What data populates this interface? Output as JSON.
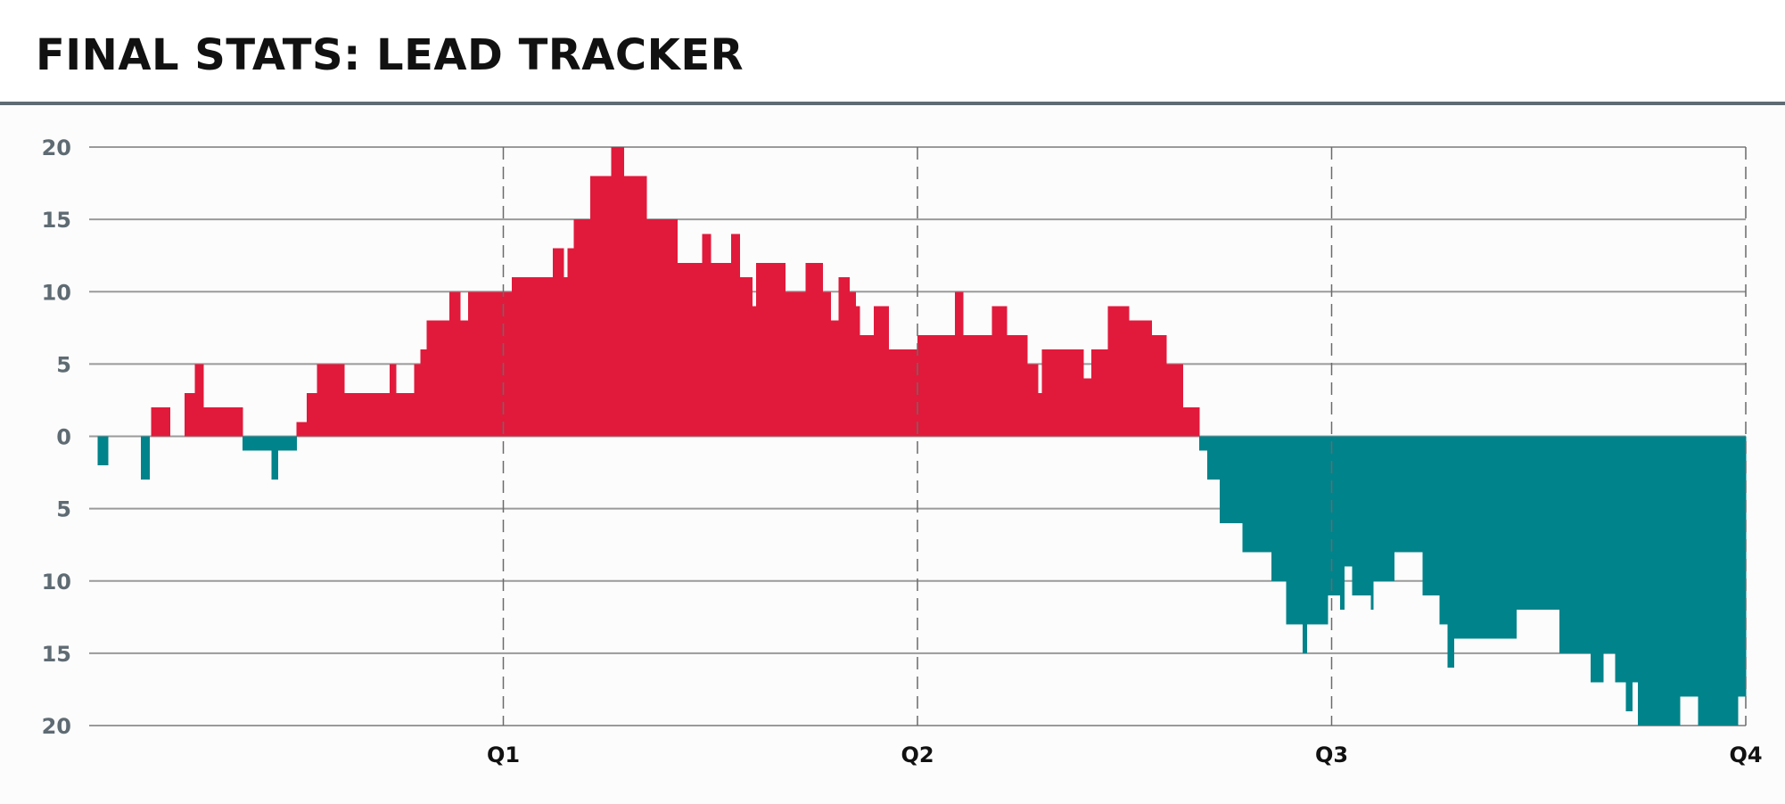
{
  "header": {
    "title": "FINAL STATS: LEAD TRACKER"
  },
  "colors": {
    "positive": "#e11a3b",
    "negative": "#00838a",
    "grid": "#9a9a9a",
    "header_rule": "#5f6b73"
  },
  "chart_data": {
    "type": "bar",
    "title": "FINAL STATS: LEAD TRACKER",
    "xlabel": "",
    "ylabel": "",
    "xlim": [
      0,
      4
    ],
    "ylim": [
      -20,
      20
    ],
    "y_ticks": [
      20,
      15,
      10,
      5,
      0,
      -5,
      -10,
      -15,
      -20
    ],
    "y_tick_labels": [
      "20",
      "15",
      "10",
      "5",
      "0",
      "5",
      "10",
      "15",
      "20"
    ],
    "x_ticks": [
      1,
      2,
      3,
      4
    ],
    "x_tick_labels": [
      "Q1",
      "Q2",
      "Q3",
      "Q4"
    ],
    "grid": true,
    "legend": "none",
    "lead_steps": [
      [
        0.0,
        0
      ],
      [
        0.02,
        -2
      ],
      [
        0.045,
        0
      ],
      [
        0.125,
        -3
      ],
      [
        0.145,
        0
      ],
      [
        0.15,
        2
      ],
      [
        0.195,
        0
      ],
      [
        0.23,
        3
      ],
      [
        0.255,
        5
      ],
      [
        0.275,
        2
      ],
      [
        0.37,
        -1
      ],
      [
        0.44,
        -3
      ],
      [
        0.455,
        -1
      ],
      [
        0.5,
        1
      ],
      [
        0.525,
        3
      ],
      [
        0.55,
        5
      ],
      [
        0.615,
        3
      ],
      [
        0.725,
        5
      ],
      [
        0.74,
        3
      ],
      [
        0.785,
        5
      ],
      [
        0.8,
        6
      ],
      [
        0.815,
        8
      ],
      [
        0.87,
        10
      ],
      [
        0.895,
        8
      ],
      [
        0.915,
        10
      ],
      [
        1.02,
        11
      ],
      [
        1.12,
        13
      ],
      [
        1.145,
        11
      ],
      [
        1.155,
        13
      ],
      [
        1.17,
        15
      ],
      [
        1.21,
        18
      ],
      [
        1.26,
        20
      ],
      [
        1.29,
        18
      ],
      [
        1.345,
        15
      ],
      [
        1.42,
        12
      ],
      [
        1.48,
        14
      ],
      [
        1.5,
        12
      ],
      [
        1.55,
        14
      ],
      [
        1.57,
        11
      ],
      [
        1.6,
        9
      ],
      [
        1.61,
        12
      ],
      [
        1.68,
        10
      ],
      [
        1.73,
        12
      ],
      [
        1.77,
        10
      ],
      [
        1.79,
        8
      ],
      [
        1.81,
        11
      ],
      [
        1.835,
        10
      ],
      [
        1.85,
        9
      ],
      [
        1.86,
        7
      ],
      [
        1.895,
        9
      ],
      [
        1.93,
        6
      ],
      [
        2.0,
        7
      ],
      [
        2.09,
        10
      ],
      [
        2.11,
        7
      ],
      [
        2.18,
        9
      ],
      [
        2.215,
        7
      ],
      [
        2.265,
        5
      ],
      [
        2.29,
        3
      ],
      [
        2.3,
        6
      ],
      [
        2.4,
        4
      ],
      [
        2.42,
        6
      ],
      [
        2.46,
        9
      ],
      [
        2.51,
        8
      ],
      [
        2.565,
        7
      ],
      [
        2.6,
        5
      ],
      [
        2.64,
        2
      ],
      [
        2.68,
        -1
      ],
      [
        2.7,
        -3
      ],
      [
        2.73,
        -6
      ],
      [
        2.785,
        -8
      ],
      [
        2.855,
        -10
      ],
      [
        2.89,
        -13
      ],
      [
        2.93,
        -15
      ],
      [
        2.94,
        -13
      ],
      [
        2.99,
        -11
      ],
      [
        3.02,
        -12
      ],
      [
        3.03,
        -9
      ],
      [
        3.05,
        -11
      ],
      [
        3.095,
        -12
      ],
      [
        3.1,
        -10
      ],
      [
        3.15,
        -8
      ],
      [
        3.22,
        -11
      ],
      [
        3.26,
        -13
      ],
      [
        3.28,
        -16
      ],
      [
        3.295,
        -14
      ],
      [
        3.445,
        -12
      ],
      [
        3.55,
        -15
      ],
      [
        3.625,
        -17
      ],
      [
        3.655,
        -15
      ],
      [
        3.685,
        -17
      ],
      [
        3.71,
        -19
      ],
      [
        3.725,
        -17
      ],
      [
        3.74,
        -20
      ],
      [
        3.84,
        -18
      ],
      [
        3.885,
        -20
      ],
      [
        3.98,
        -18
      ],
      [
        4.0,
        -18
      ]
    ]
  }
}
